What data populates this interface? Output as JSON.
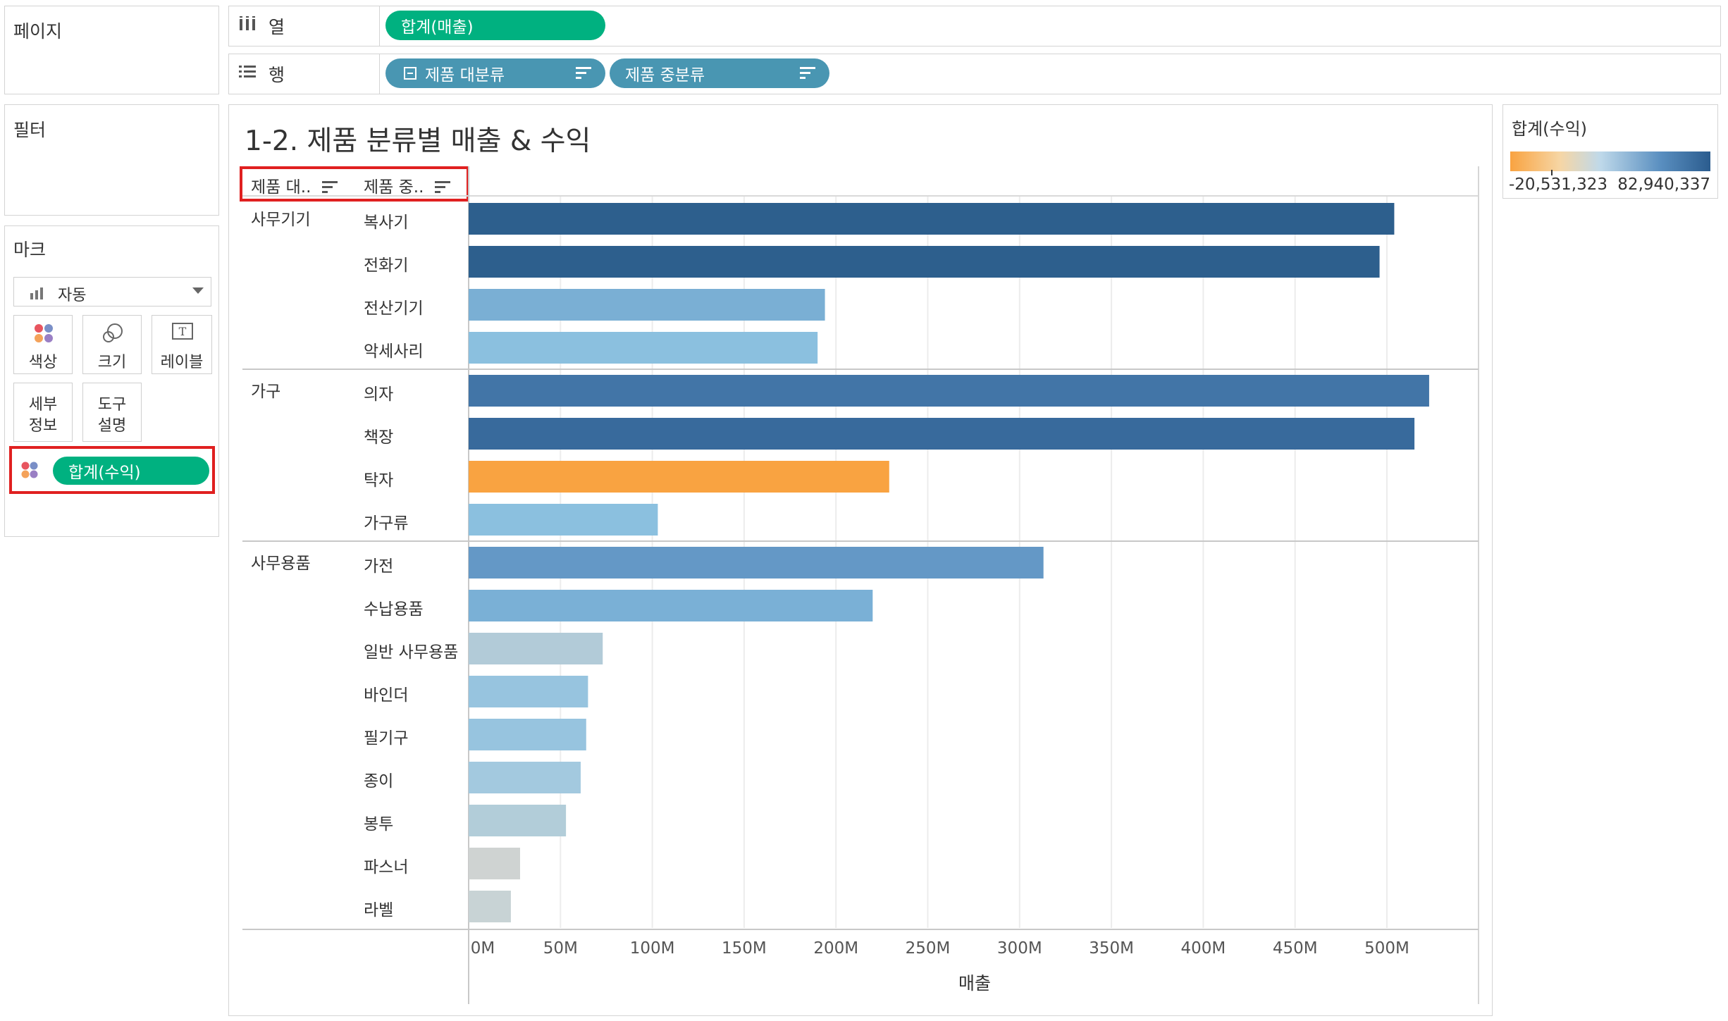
{
  "shelves": {
    "pages_title": "페이지",
    "filters_title": "필터",
    "marks_title": "마크",
    "columns_label": "열",
    "rows_label": "행",
    "columns_pill": "합계(매출)",
    "rows_pills": [
      "제품 대분류",
      "제품 중분류"
    ]
  },
  "marks": {
    "mark_type": "자동",
    "buttons": {
      "color": "색상",
      "size": "크기",
      "label": "레이블",
      "detail_1": "세부",
      "detail_2": "정보",
      "tooltip_1": "도구",
      "tooltip_2": "설명"
    },
    "color_pill": "합계(수익)"
  },
  "legend": {
    "title": "합계(수익)",
    "min_label": "-20,531,323",
    "max_label": "82,940,337",
    "colors": {
      "low": "#f9a341",
      "mid": "#e6eef2",
      "high": "#2b5c8e"
    }
  },
  "viz": {
    "title": "1-2. 제품 분류별 매출 & 수익",
    "col_header_1": "제품 대..",
    "col_header_2": "제품 중..",
    "xlabel": "매출",
    "xticks": [
      "0M",
      "50M",
      "100M",
      "150M",
      "200M",
      "250M",
      "300M",
      "350M",
      "400M",
      "450M",
      "500M"
    ]
  },
  "chart_data": {
    "type": "bar",
    "orientation": "horizontal",
    "xlabel": "매출",
    "xlim": [
      0,
      550000000
    ],
    "grid": true,
    "groups": [
      {
        "name": "사무기기",
        "items": [
          {
            "name": "복사기",
            "value": 504000000,
            "color": "#2d5f8d"
          },
          {
            "name": "전화기",
            "value": 496000000,
            "color": "#2d5f8d"
          },
          {
            "name": "전산기기",
            "value": 194000000,
            "color": "#7aafd4"
          },
          {
            "name": "악세사리",
            "value": 190000000,
            "color": "#8bc0df"
          }
        ]
      },
      {
        "name": "가구",
        "items": [
          {
            "name": "의자",
            "value": 523000000,
            "color": "#4275a7"
          },
          {
            "name": "책장",
            "value": 515000000,
            "color": "#386a9c"
          },
          {
            "name": "탁자",
            "value": 229000000,
            "color": "#f9a341"
          },
          {
            "name": "가구류",
            "value": 103000000,
            "color": "#8bc0df"
          }
        ]
      },
      {
        "name": "사무용품",
        "items": [
          {
            "name": "가전",
            "value": 313000000,
            "color": "#6498c6"
          },
          {
            "name": "수납용품",
            "value": 220000000,
            "color": "#7ab0d6"
          },
          {
            "name": "일반 사무용품",
            "value": 73000000,
            "color": "#b2cbd8"
          },
          {
            "name": "바인더",
            "value": 65000000,
            "color": "#97c4df"
          },
          {
            "name": "필기구",
            "value": 64000000,
            "color": "#97c4df"
          },
          {
            "name": "종이",
            "value": 61000000,
            "color": "#a3c9df"
          },
          {
            "name": "봉투",
            "value": 53000000,
            "color": "#b2cdd9"
          },
          {
            "name": "파스너",
            "value": 28000000,
            "color": "#cfd3d2"
          },
          {
            "name": "라벨",
            "value": 23000000,
            "color": "#c8d3d5"
          }
        ]
      }
    ]
  }
}
